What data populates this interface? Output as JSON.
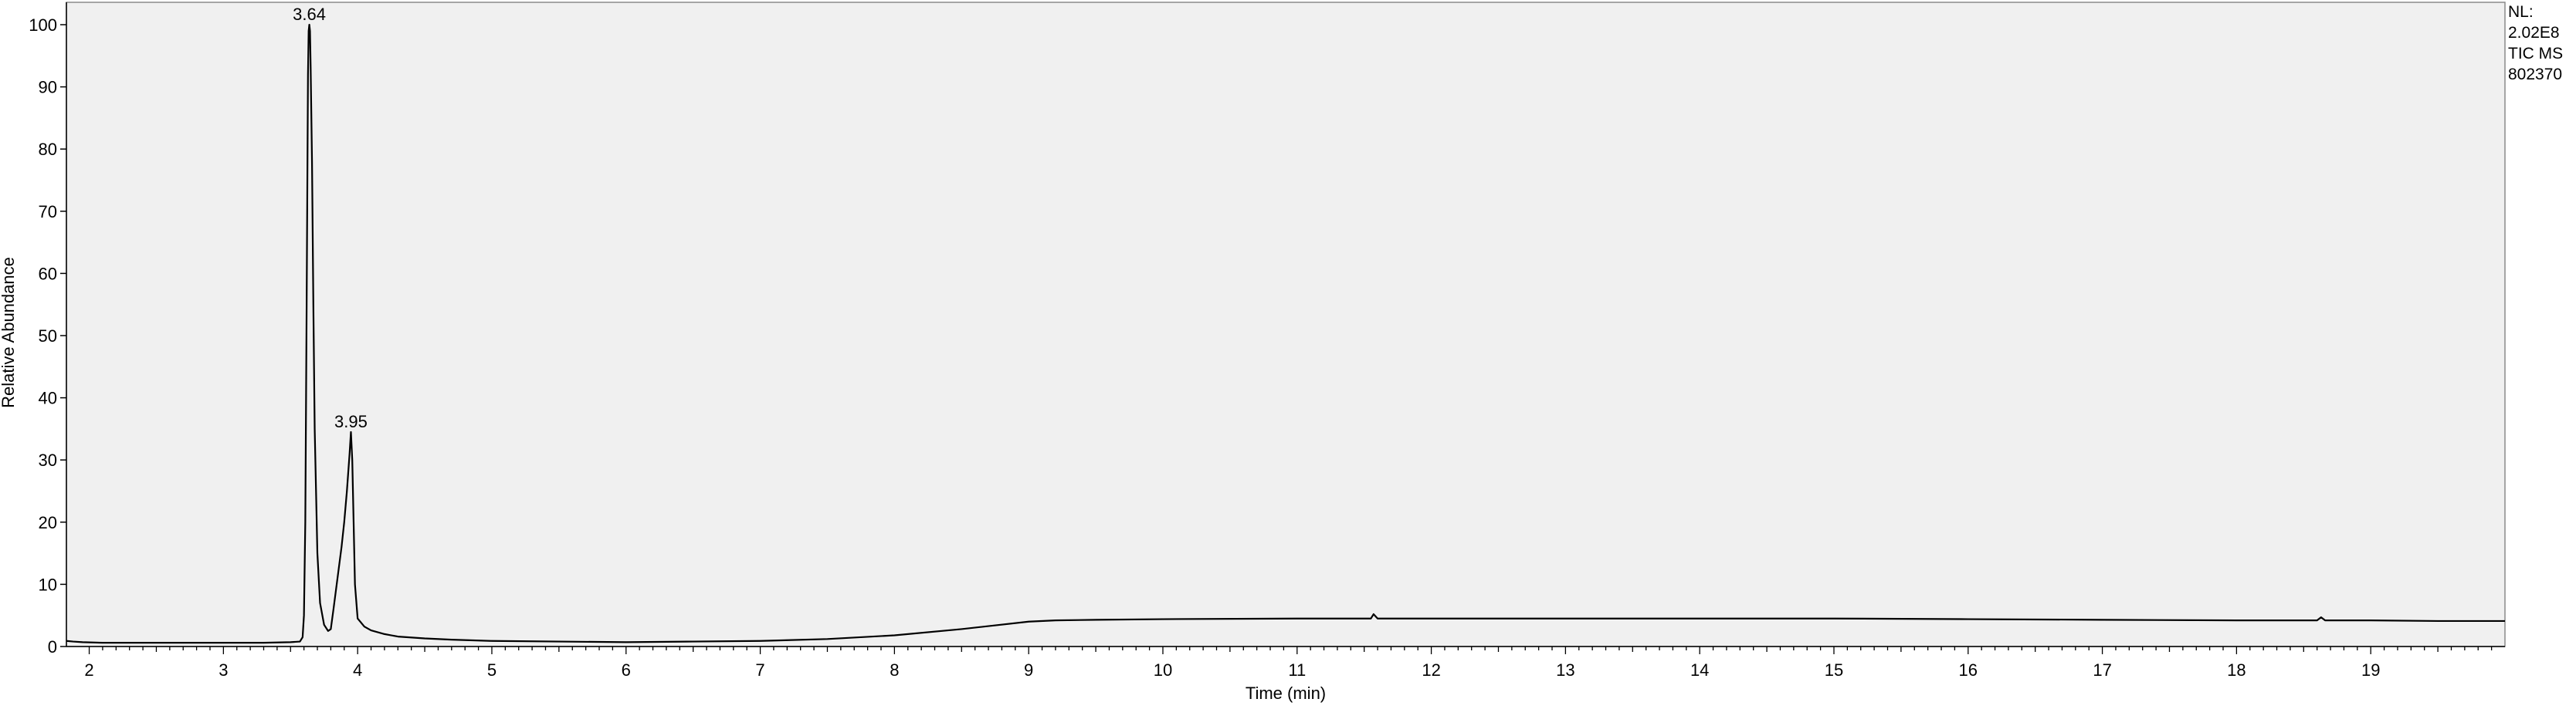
{
  "chart_data": {
    "type": "line",
    "title": "",
    "xlabel": "Time (min)",
    "ylabel": "Relative Abundance",
    "xlim": [
      1.83,
      20.0
    ],
    "ylim": [
      0,
      100
    ],
    "x_ticks": [
      2,
      3,
      4,
      5,
      6,
      7,
      8,
      9,
      10,
      11,
      12,
      13,
      14,
      15,
      16,
      17,
      18,
      19
    ],
    "y_ticks": [
      0,
      10,
      20,
      30,
      40,
      50,
      60,
      70,
      80,
      90,
      100
    ],
    "grid": false,
    "peak_labels": [
      {
        "x": 3.64,
        "y": 100,
        "label": "3.64"
      },
      {
        "x": 3.95,
        "y": 34.5,
        "label": "3.95"
      }
    ],
    "info_lines": [
      "NL:",
      "2.02E8",
      "TIC  MS",
      "802370"
    ],
    "series": [
      {
        "color": "#000000",
        "x": [
          1.83,
          1.88,
          1.95,
          2.1,
          2.5,
          3.0,
          3.3,
          3.5,
          3.57,
          3.59,
          3.6,
          3.61,
          3.62,
          3.63,
          3.635,
          3.64,
          3.645,
          3.65,
          3.66,
          3.67,
          3.68,
          3.7,
          3.72,
          3.75,
          3.78,
          3.8,
          3.82,
          3.85,
          3.88,
          3.9,
          3.92,
          3.94,
          3.95,
          3.96,
          3.97,
          3.98,
          4.0,
          4.05,
          4.1,
          4.2,
          4.3,
          4.5,
          4.7,
          5.0,
          5.5,
          6.0,
          6.5,
          7.0,
          7.5,
          8.0,
          8.5,
          9.0,
          9.2,
          9.5,
          10.0,
          11.0,
          11.55,
          11.57,
          11.6,
          12.0,
          13.0,
          14.0,
          15.0,
          16.0,
          17.0,
          18.0,
          18.6,
          18.63,
          18.66,
          19.0,
          19.5,
          20.0
        ],
        "y": [
          0.9,
          0.8,
          0.7,
          0.6,
          0.6,
          0.6,
          0.6,
          0.7,
          0.8,
          1.5,
          5.0,
          20.0,
          55.0,
          92.0,
          99.0,
          100,
          99.0,
          93.0,
          78.0,
          55.0,
          35.0,
          15.0,
          7.0,
          3.5,
          2.5,
          2.8,
          6.0,
          11.0,
          16.0,
          20.0,
          25.0,
          31.0,
          34.5,
          30.0,
          20.0,
          10.0,
          4.5,
          3.2,
          2.6,
          2.0,
          1.6,
          1.3,
          1.1,
          0.9,
          0.8,
          0.7,
          0.8,
          0.9,
          1.2,
          1.8,
          2.8,
          4.0,
          4.2,
          4.3,
          4.4,
          4.5,
          4.5,
          5.2,
          4.5,
          4.5,
          4.5,
          4.5,
          4.5,
          4.4,
          4.3,
          4.2,
          4.2,
          4.7,
          4.2,
          4.2,
          4.1,
          4.1
        ]
      }
    ]
  }
}
